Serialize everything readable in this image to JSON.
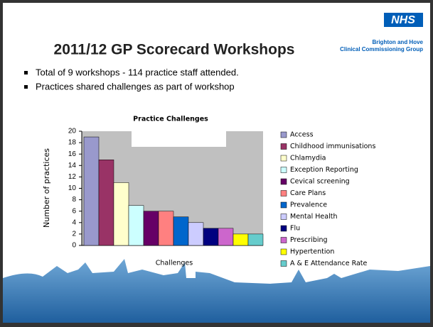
{
  "logo": "NHS",
  "organisation": [
    "Brighton and Hove",
    "Clinical Commissioning Group"
  ],
  "title": "2011/12 GP Scorecard Workshops",
  "bullets": [
    "Total of 9 workshops - 114 practice staff attended.",
    "Practices shared challenges as part of workshop"
  ],
  "chart_data": {
    "type": "bar",
    "title": "Practice Challenges",
    "x_label": "Challenges",
    "y_label": "Number of practices",
    "categories": [
      "Access",
      "Childhood immunisations",
      "Chlamydia",
      "Exception Reporting",
      "Cevical screening",
      "Care Plans",
      "Prevalence",
      "Mental Health",
      "Flu",
      "Prescribing",
      "Hypertention",
      "A & E Attendance Rate"
    ],
    "values": [
      19,
      15,
      11,
      7,
      6,
      6,
      5,
      4,
      3,
      3,
      2,
      2
    ],
    "colors": [
      "#9999cc",
      "#993366",
      "#ffffcc",
      "#ccffff",
      "#660066",
      "#ff8080",
      "#0066cc",
      "#ccccff",
      "#000080",
      "#cc66cc",
      "#ffff00",
      "#66cccc"
    ],
    "ylim": [
      0,
      20
    ],
    "yticks": [
      0,
      2,
      4,
      6,
      8,
      10,
      12,
      14,
      16,
      18,
      20
    ],
    "legend": "right"
  }
}
